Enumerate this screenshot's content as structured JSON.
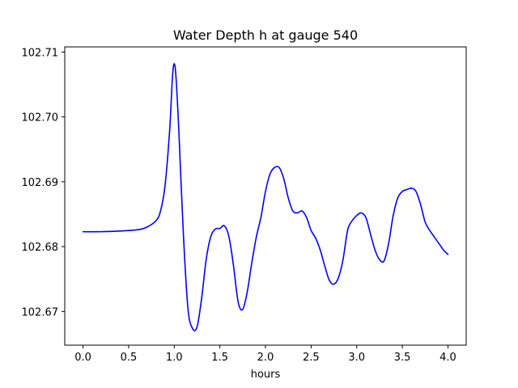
{
  "chart_data": {
    "type": "line",
    "title": "Water Depth h at gauge 540",
    "xlabel": "hours",
    "ylabel": "",
    "xlim": [
      -0.2,
      4.2
    ],
    "ylim": [
      102.6648,
      102.7108
    ],
    "grid": false,
    "x_ticks": [
      0.0,
      0.5,
      1.0,
      1.5,
      2.0,
      2.5,
      3.0,
      3.5,
      4.0
    ],
    "x_tick_labels": [
      "0.0",
      "0.5",
      "1.0",
      "1.5",
      "2.0",
      "2.5",
      "3.0",
      "3.5",
      "4.0"
    ],
    "y_ticks": [
      102.67,
      102.68,
      102.69,
      102.7,
      102.71
    ],
    "y_tick_labels": [
      "102.67",
      "102.68",
      "102.69",
      "102.70",
      "102.71"
    ],
    "series": [
      {
        "name": "h",
        "color": "#0000ff",
        "x": [
          0.0,
          0.2,
          0.4,
          0.6,
          0.7,
          0.8,
          0.85,
          0.9,
          0.95,
          0.98,
          1.0,
          1.02,
          1.05,
          1.1,
          1.15,
          1.2,
          1.25,
          1.3,
          1.35,
          1.4,
          1.45,
          1.5,
          1.55,
          1.6,
          1.65,
          1.7,
          1.75,
          1.8,
          1.85,
          1.9,
          1.95,
          2.0,
          2.05,
          2.1,
          2.15,
          2.2,
          2.25,
          2.3,
          2.35,
          2.4,
          2.45,
          2.5,
          2.55,
          2.6,
          2.65,
          2.7,
          2.75,
          2.8,
          2.85,
          2.9,
          2.95,
          3.0,
          3.05,
          3.1,
          3.15,
          3.2,
          3.25,
          3.3,
          3.35,
          3.4,
          3.45,
          3.5,
          3.55,
          3.6,
          3.65,
          3.7,
          3.75,
          3.8,
          3.85,
          3.9,
          3.95,
          4.0
        ],
        "values": [
          102.6823,
          102.6823,
          102.6824,
          102.6826,
          102.683,
          102.684,
          102.6855,
          102.6895,
          102.698,
          102.706,
          102.7082,
          102.706,
          102.698,
          102.682,
          102.6705,
          102.6674,
          102.6676,
          102.672,
          102.678,
          102.6815,
          102.6827,
          102.6828,
          102.6832,
          102.6815,
          102.677,
          102.6715,
          102.6703,
          102.673,
          102.6775,
          102.6815,
          102.6845,
          102.6885,
          102.6912,
          102.6922,
          102.6922,
          102.6905,
          102.6875,
          102.6855,
          102.6852,
          102.6855,
          102.6845,
          102.6825,
          102.6813,
          102.6795,
          102.677,
          102.6748,
          102.6742,
          102.6752,
          102.678,
          102.6825,
          102.684,
          102.6848,
          102.6852,
          102.6845,
          102.682,
          102.6795,
          102.678,
          102.6778,
          102.6805,
          102.6848,
          102.6875,
          102.6885,
          102.6888,
          102.689,
          102.6885,
          102.6865,
          102.6838,
          102.6825,
          102.6815,
          102.6805,
          102.6795,
          102.6788
        ]
      }
    ]
  }
}
